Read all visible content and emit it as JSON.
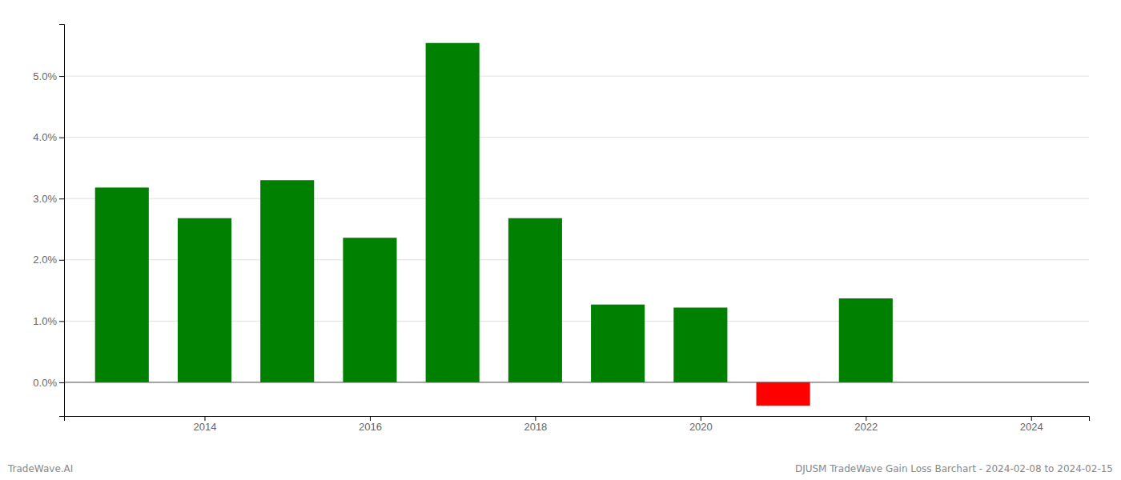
{
  "chart_data": {
    "type": "bar",
    "x": [
      2013,
      2014,
      2015,
      2016,
      2017,
      2018,
      2019,
      2020,
      2021,
      2022,
      2023
    ],
    "values": [
      3.18,
      2.68,
      3.3,
      2.36,
      5.54,
      2.68,
      1.27,
      1.22,
      -0.38,
      1.37,
      0.0
    ],
    "colors": [
      "#008000",
      "#008000",
      "#008000",
      "#008000",
      "#008000",
      "#008000",
      "#008000",
      "#008000",
      "#ff0000",
      "#008000",
      "#008000"
    ],
    "xlim": [
      2012.3,
      2024.7
    ],
    "xticks": [
      2014,
      2016,
      2018,
      2020,
      2022,
      2024
    ],
    "ylim": [
      -0.55,
      5.85
    ],
    "yticks": [
      {
        "value": 0,
        "label": "0.0%"
      },
      {
        "value": 1,
        "label": "1.0%"
      },
      {
        "value": 2,
        "label": "2.0%"
      },
      {
        "value": 3,
        "label": "3.0%"
      },
      {
        "value": 4,
        "label": "4.0%"
      },
      {
        "value": 5,
        "label": "5.0%"
      }
    ],
    "grid": true,
    "annotations": [
      "TradeWave.AI",
      "DJUSM TradeWave Gain Loss Barchart - 2024-02-08 to 2024-02-15"
    ]
  }
}
